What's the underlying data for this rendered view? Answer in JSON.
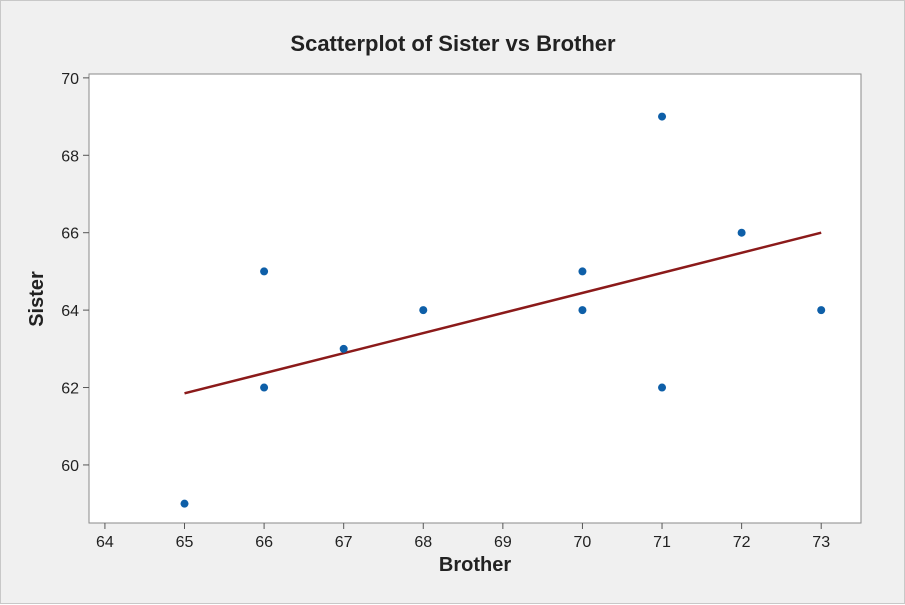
{
  "chart_data": {
    "type": "scatter",
    "title": "Scatterplot of Sister vs Brother",
    "xlabel": "Brother",
    "ylabel": "Sister",
    "xlim": [
      63.8,
      73.5
    ],
    "ylim": [
      58.5,
      70.1
    ],
    "xticks": [
      64,
      65,
      66,
      67,
      68,
      69,
      70,
      71,
      72,
      73
    ],
    "yticks": [
      60,
      62,
      64,
      66,
      68,
      70
    ],
    "grid": false,
    "series": [
      {
        "points": [
          {
            "x": 65,
            "y": 59
          },
          {
            "x": 66,
            "y": 62
          },
          {
            "x": 66,
            "y": 65
          },
          {
            "x": 67,
            "y": 63
          },
          {
            "x": 68,
            "y": 64
          },
          {
            "x": 70,
            "y": 64
          },
          {
            "x": 70,
            "y": 65
          },
          {
            "x": 71,
            "y": 62
          },
          {
            "x": 71,
            "y": 69
          },
          {
            "x": 72,
            "y": 66
          },
          {
            "x": 73,
            "y": 64
          }
        ],
        "color": "#0e5fa8"
      }
    ],
    "fit_line": {
      "x": [
        65,
        73
      ],
      "y": [
        61.85,
        66.0
      ],
      "color": "#8b1a1a"
    }
  }
}
